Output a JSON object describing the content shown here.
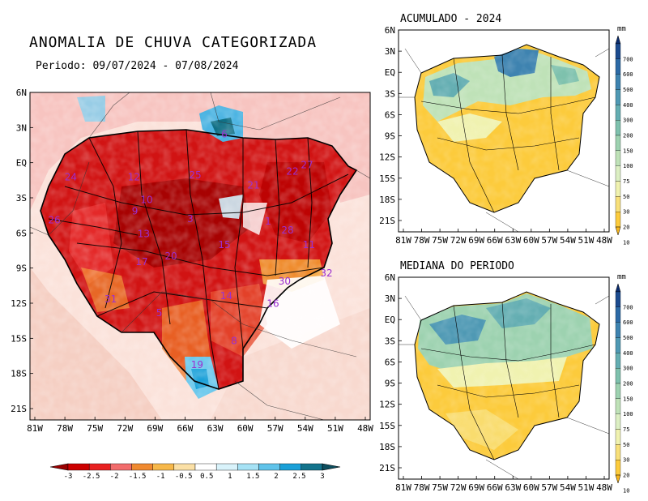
{
  "header": {
    "title": "ANOMALIA DE CHUVA CATEGORIZADA",
    "subtitle": "Periodo: 09/07/2024 - 07/08/2024"
  },
  "maps": {
    "main": {
      "lat_ticks": [
        "6N",
        "3N",
        "EQ",
        "3S",
        "6S",
        "9S",
        "12S",
        "15S",
        "18S",
        "21S"
      ],
      "lon_ticks": [
        "81W",
        "78W",
        "75W",
        "72W",
        "69W",
        "66W",
        "63W",
        "60W",
        "57W",
        "54W",
        "51W",
        "48W"
      ],
      "basin_labels": [
        {
          "text": "6",
          "lon": -62.0,
          "lat": 3.0
        },
        {
          "text": "24",
          "lon": -77.8,
          "lat": -0.8
        },
        {
          "text": "12",
          "lon": -71.3,
          "lat": -0.8
        },
        {
          "text": "25",
          "lon": -65.0,
          "lat": -0.6
        },
        {
          "text": "21",
          "lon": -59.0,
          "lat": -1.5
        },
        {
          "text": "27",
          "lon": -53.5,
          "lat": 0.3
        },
        {
          "text": "22",
          "lon": -55.0,
          "lat": -0.3
        },
        {
          "text": "10",
          "lon": -70.0,
          "lat": -2.8
        },
        {
          "text": "9",
          "lon": -71.2,
          "lat": -3.8
        },
        {
          "text": "26",
          "lon": -79.5,
          "lat": -4.6
        },
        {
          "text": "3",
          "lon": -65.5,
          "lat": -4.5
        },
        {
          "text": "1",
          "lon": -57.5,
          "lat": -4.7
        },
        {
          "text": "28",
          "lon": -55.5,
          "lat": -5.5
        },
        {
          "text": "13",
          "lon": -70.3,
          "lat": -5.8
        },
        {
          "text": "15",
          "lon": -62.0,
          "lat": -6.8
        },
        {
          "text": "11",
          "lon": -53.3,
          "lat": -6.8
        },
        {
          "text": "20",
          "lon": -67.5,
          "lat": -7.8
        },
        {
          "text": "17",
          "lon": -70.5,
          "lat": -8.3
        },
        {
          "text": "30",
          "lon": -55.8,
          "lat": -10.0
        },
        {
          "text": "32",
          "lon": -51.5,
          "lat": -9.3
        },
        {
          "text": "14",
          "lon": -61.8,
          "lat": -11.3
        },
        {
          "text": "31",
          "lon": -73.7,
          "lat": -11.6
        },
        {
          "text": "16",
          "lon": -57.0,
          "lat": -12.0
        },
        {
          "text": "5",
          "lon": -68.7,
          "lat": -12.8
        },
        {
          "text": "8",
          "lon": -61.0,
          "lat": -15.3
        },
        {
          "text": "19",
          "lon": -64.8,
          "lat": -17.4
        }
      ]
    },
    "acumulado": {
      "title": "ACUMULADO - 2024",
      "lat_ticks": [
        "6N",
        "3N",
        "EQ",
        "3S",
        "6S",
        "9S",
        "12S",
        "15S",
        "18S",
        "21S"
      ],
      "lon_ticks": [
        "81W",
        "78W",
        "75W",
        "72W",
        "69W",
        "66W",
        "63W",
        "60W",
        "57W",
        "54W",
        "51W",
        "48W"
      ]
    },
    "mediana": {
      "title": "MEDIANA DO PERIODO",
      "lat_ticks": [
        "6N",
        "3N",
        "EQ",
        "3S",
        "6S",
        "9S",
        "12S",
        "15S",
        "18S",
        "21S"
      ],
      "lon_ticks": [
        "81W",
        "78W",
        "75W",
        "72W",
        "69W",
        "66W",
        "63W",
        "60W",
        "57W",
        "54W",
        "51W",
        "48W"
      ]
    }
  },
  "anomaly_legend": {
    "labels": [
      "-3",
      "-2.5",
      "-2",
      "-1.5",
      "-1",
      "-0.5",
      "0.5",
      "1",
      "1.5",
      "2",
      "2.5",
      "3"
    ],
    "colors": [
      "#9a0000",
      "#cc0000",
      "#e82020",
      "#f26c6c",
      "#f08a30",
      "#f7b84a",
      "#fbe0a6",
      "#ffffff",
      "#d9f3fb",
      "#a6e2f5",
      "#60c3ea",
      "#1aa0d8",
      "#13738c",
      "#0d4e5e"
    ]
  },
  "mm_legend": {
    "unit": "mm",
    "labels": [
      "700",
      "600",
      "500",
      "400",
      "300",
      "200",
      "150",
      "100",
      "75",
      "50",
      "30",
      "20",
      "10"
    ],
    "colors": [
      "#0a2c6e",
      "#1c4b8f",
      "#2c6aa6",
      "#3e83b0",
      "#4f99b4",
      "#64aeb2",
      "#7ec1ad",
      "#9dd2b0",
      "#bfe2b8",
      "#dcefc3",
      "#f0f2b0",
      "#f8e07a",
      "#fccb3c",
      "#f7b51a"
    ]
  }
}
